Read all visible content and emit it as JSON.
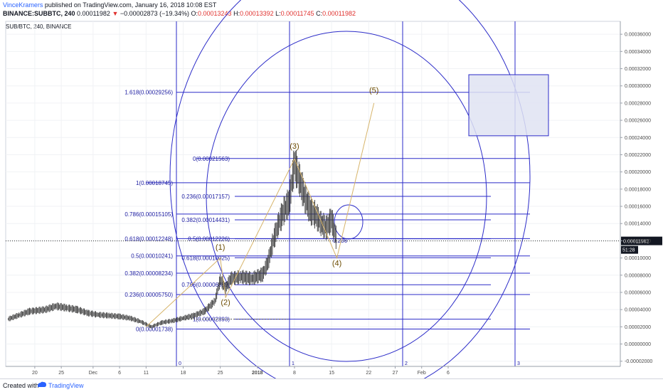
{
  "header": {
    "author": "VinceKramers",
    "published_text": "published on TradingView.com, January 16, 2018 10:08 EST",
    "symbol_line": "BINANCE:SUBBTC, 240",
    "last_price": "0.00011982",
    "change_arrow": "▼",
    "change": "−0.00002873 (−19.34%)",
    "o_label": "O:",
    "o_value": "0.00013243",
    "h_label": "H:",
    "h_value": "0.00013392",
    "l_label": "L:",
    "l_value": "0.00011745",
    "c_label": "C:",
    "c_value": "0.00011982"
  },
  "chart_data": {
    "type": "line",
    "title": "SUB/BTC, 240, BINANCE",
    "y_ticks": [
      "0.00036000",
      "0.00034000",
      "0.00032000",
      "0.00030000",
      "0.00028000",
      "0.00026000",
      "0.00024000",
      "0.00022000",
      "0.00020000",
      "0.00018000",
      "0.00016000",
      "0.00014000",
      "0.00012000",
      "0.00010000",
      "0.00008000",
      "0.00006000",
      "0.00004000",
      "0.00002000",
      "0.00000000",
      "-0.00002000"
    ],
    "x_ticks": [
      "20",
      "25",
      "Dec",
      "6",
      "11",
      "18",
      "25",
      "2018",
      "8",
      "15",
      "22",
      "27",
      "Feb",
      "6"
    ],
    "ylim": [
      -2.6e-05,
      0.000375
    ],
    "current_price_label": "0.00011982",
    "current_price": 0.00011982,
    "countdown": "51:28",
    "price_series": [
      {
        "x": "Nov 15",
        "y": 2.9e-05
      },
      {
        "x": "Nov 17",
        "y": 3.35e-05
      },
      {
        "x": "Nov 19",
        "y": 3.8e-05
      },
      {
        "x": "Nov 22",
        "y": 4e-05
      },
      {
        "x": "Nov 24",
        "y": 4.4e-05
      },
      {
        "x": "Nov 26",
        "y": 4.2e-05
      },
      {
        "x": "Nov 28",
        "y": 4e-05
      },
      {
        "x": "Nov 30",
        "y": 3.6e-05
      },
      {
        "x": "Dec 2",
        "y": 3.4e-05
      },
      {
        "x": "Dec 4",
        "y": 3.3e-05
      },
      {
        "x": "Dec 6",
        "y": 3.2e-05
      },
      {
        "x": "Dec 8",
        "y": 3e-05
      },
      {
        "x": "Dec 10",
        "y": 2.6e-05
      },
      {
        "x": "Dec 12",
        "y": 2e-05
      },
      {
        "x": "Dec 14",
        "y": 2.5e-05
      },
      {
        "x": "Dec 16",
        "y": 2.7e-05
      },
      {
        "x": "Dec 18",
        "y": 3e-05
      },
      {
        "x": "Dec 20",
        "y": 3.3e-05
      },
      {
        "x": "Dec 22",
        "y": 3.8e-05
      },
      {
        "x": "Dec 24",
        "y": 5e-05
      },
      {
        "x": "Dec 25",
        "y": 7.5e-05
      },
      {
        "x": "Dec 26",
        "y": 6.5e-05
      },
      {
        "x": "Dec 27",
        "y": 7.6e-05
      },
      {
        "x": "Dec 29",
        "y": 7.8e-05
      },
      {
        "x": "Dec 31",
        "y": 7.6e-05
      },
      {
        "x": "Jan 2",
        "y": 8.1e-05
      },
      {
        "x": "Jan 3",
        "y": 9.5e-05
      },
      {
        "x": "Jan 4",
        "y": 0.00012
      },
      {
        "x": "Jan 5",
        "y": 0.00014
      },
      {
        "x": "Jan 6",
        "y": 0.000155
      },
      {
        "x": "Jan 7",
        "y": 0.000165
      },
      {
        "x": "Jan 8",
        "y": 0.00021
      },
      {
        "x": "Jan 9",
        "y": 0.00019
      },
      {
        "x": "Jan 10",
        "y": 0.00017
      },
      {
        "x": "Jan 11",
        "y": 0.000155
      },
      {
        "x": "Jan 12",
        "y": 0.00015
      },
      {
        "x": "Jan 13",
        "y": 0.00014
      },
      {
        "x": "Jan 14",
        "y": 0.000135
      },
      {
        "x": "Jan 15",
        "y": 0.000145
      },
      {
        "x": "Jan 16",
        "y": 0.0001198
      }
    ],
    "fib_levels": [
      {
        "label": "1.618(0.00029256)",
        "value": 0.00029256
      },
      {
        "label": "0(0.00021563)",
        "value": 0.00021563
      },
      {
        "label": "1(0.00018745)",
        "value": 0.00018745
      },
      {
        "label": "0.236(0.00017157)",
        "value": 0.00017157
      },
      {
        "label": "0.786(0.00015105)",
        "value": 0.00015105
      },
      {
        "label": "0.382(0.00014431)",
        "value": 0.00014431
      },
      {
        "label": "0.618(0.00012248)",
        "value": 0.00012248
      },
      {
        "label": "0.5(0.00012226)",
        "value": 0.00012226
      },
      {
        "label": "0.5(0.00010241)",
        "value": 0.00010241
      },
      {
        "label": "0.618(0.00010025)",
        "value": 0.00010025
      },
      {
        "label": "0.382(0.00008234)",
        "value": 8.234e-05
      },
      {
        "label": "0.786(0.00006889)",
        "value": 6.889e-05
      },
      {
        "label": "0.236(0.00005750)",
        "value": 5.75e-05
      },
      {
        "label": "1(0.00002893)",
        "value": 2.893e-05
      },
      {
        "label": "0(0.00001738)",
        "value": 1.738e-05
      }
    ],
    "inner_fib_label": "0.236",
    "wave_labels": [
      {
        "label": "(1)",
        "x": "Dec 25",
        "y": 0.0001095
      },
      {
        "label": "(2)",
        "x": "Dec 26",
        "y": 4.55e-05
      },
      {
        "label": "(3)",
        "x": "Jan 8",
        "y": 0.000227
      },
      {
        "label": "(4)",
        "x": "Jan 16",
        "y": 9.1e-05
      },
      {
        "label": "(5)",
        "x": "Jan 23",
        "y": 0.000292
      }
    ],
    "wave_path": [
      {
        "x": "Dec 11",
        "y": 2e-05
      },
      {
        "x": "Dec 25",
        "y": 0.0001
      },
      {
        "x": "Dec 26",
        "y": 5.4e-05
      },
      {
        "x": "Jan 8",
        "y": 0.000215
      },
      {
        "x": "Jan 16",
        "y": 0.0001
      },
      {
        "x": "Jan 23",
        "y": 0.00028
      }
    ],
    "time_sequence_labels": [
      "0",
      "1",
      "2",
      "3"
    ],
    "target_box": {
      "price_high": 0.000313,
      "price_low": 0.000242
    },
    "grid": true,
    "legend": "none"
  },
  "footer": {
    "created_with": "Created with",
    "brand": "TradingView"
  },
  "colors": {
    "fib_blue": "#2b2bc8",
    "wave_gold": "#d7b46a",
    "candle": "#3a3a3a",
    "target_box": "#dfe3f2"
  }
}
